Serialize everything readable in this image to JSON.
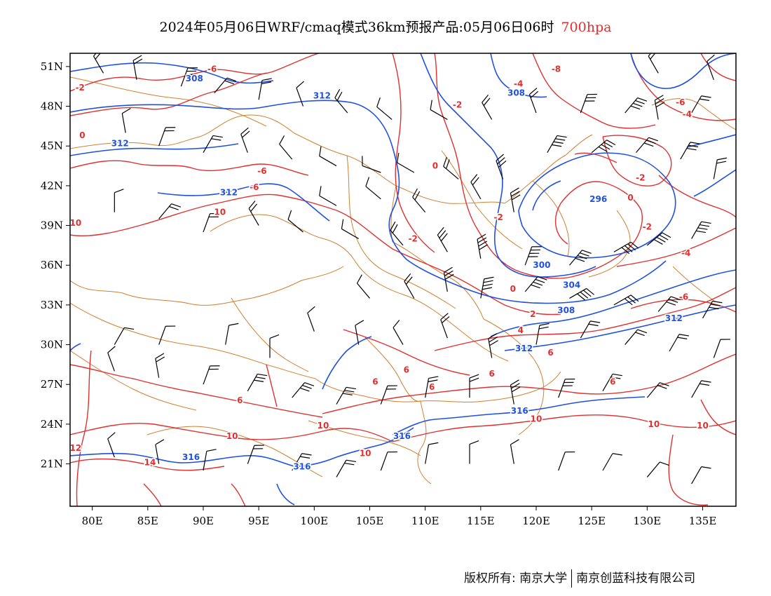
{
  "header": {
    "title": "2024年05月06日WRF/cmaq模式36km预报产品:05月06日06时",
    "level": "700hpa"
  },
  "map": {
    "lat_labels": [
      "51N",
      "48N",
      "45N",
      "42N",
      "39N",
      "36N",
      "33N",
      "30N",
      "27N",
      "24N",
      "21N"
    ],
    "lat_values": [
      51,
      48,
      45,
      42,
      39,
      36,
      33,
      30,
      27,
      24,
      21
    ],
    "lon_labels": [
      "80E",
      "85E",
      "90E",
      "95E",
      "100E",
      "105E",
      "110E",
      "115E",
      "120E",
      "125E",
      "130E",
      "135E"
    ],
    "lon_values": [
      80,
      85,
      90,
      95,
      100,
      105,
      110,
      115,
      120,
      125,
      130,
      135
    ],
    "lon_range": [
      78,
      138
    ],
    "lat_range": [
      17.8,
      52
    ],
    "height_contour_color": "#2050e0",
    "temp_contour_color": "#e03030",
    "border_color": "#d08030",
    "wind_barb_color": "#000000",
    "height_labels": [
      {
        "text": "308",
        "lon": 89.2,
        "lat": 50.1
      },
      {
        "text": "312",
        "lon": 100.7,
        "lat": 48.8
      },
      {
        "text": "308",
        "lon": 118.2,
        "lat": 49.0
      },
      {
        "text": "312",
        "lon": 82.5,
        "lat": 45.2
      },
      {
        "text": "312",
        "lon": 92.3,
        "lat": 41.5
      },
      {
        "text": "296",
        "lon": 125.6,
        "lat": 41.0
      },
      {
        "text": "300",
        "lon": 120.5,
        "lat": 36.0
      },
      {
        "text": "304",
        "lon": 123.2,
        "lat": 34.5
      },
      {
        "text": "308",
        "lon": 122.7,
        "lat": 32.6
      },
      {
        "text": "312",
        "lon": 132.4,
        "lat": 32.0
      },
      {
        "text": "312",
        "lon": 118.9,
        "lat": 29.7
      },
      {
        "text": "316",
        "lon": 118.5,
        "lat": 25.0
      },
      {
        "text": "316",
        "lon": 107.9,
        "lat": 23.1
      },
      {
        "text": "316",
        "lon": 88.9,
        "lat": 21.5
      },
      {
        "text": "316",
        "lon": 98.9,
        "lat": 20.8
      }
    ],
    "temp_labels": [
      {
        "text": "-6",
        "lon": 90.8,
        "lat": 50.8
      },
      {
        "text": "-2",
        "lon": 78.9,
        "lat": 49.4
      },
      {
        "text": "0",
        "lon": 79.1,
        "lat": 45.8
      },
      {
        "text": "-6",
        "lon": 95.3,
        "lat": 43.1
      },
      {
        "text": "-6",
        "lon": 94.6,
        "lat": 41.9
      },
      {
        "text": "10",
        "lon": 78.5,
        "lat": 39.2
      },
      {
        "text": "10",
        "lon": 91.5,
        "lat": 40.0
      },
      {
        "text": "-8",
        "lon": 121.8,
        "lat": 50.8
      },
      {
        "text": "-4",
        "lon": 118.4,
        "lat": 49.7
      },
      {
        "text": "-2",
        "lon": 112.9,
        "lat": 48.1
      },
      {
        "text": "-6",
        "lon": 133.0,
        "lat": 48.3
      },
      {
        "text": "-4",
        "lon": 133.6,
        "lat": 47.4
      },
      {
        "text": "0",
        "lon": 110.9,
        "lat": 43.5
      },
      {
        "text": "-2",
        "lon": 116.6,
        "lat": 39.6
      },
      {
        "text": "-2",
        "lon": 108.9,
        "lat": 38.0
      },
      {
        "text": "-2",
        "lon": 129.4,
        "lat": 42.6
      },
      {
        "text": "0",
        "lon": 128.5,
        "lat": 41.1
      },
      {
        "text": "-2",
        "lon": 130.0,
        "lat": 38.9
      },
      {
        "text": "-4",
        "lon": 133.5,
        "lat": 36.9
      },
      {
        "text": "0",
        "lon": 117.9,
        "lat": 34.2
      },
      {
        "text": "2",
        "lon": 119.7,
        "lat": 32.3
      },
      {
        "text": "4",
        "lon": 118.6,
        "lat": 31.1
      },
      {
        "text": "-6",
        "lon": 133.3,
        "lat": 33.6
      },
      {
        "text": "6",
        "lon": 121.3,
        "lat": 29.4
      },
      {
        "text": "6",
        "lon": 108.3,
        "lat": 28.1
      },
      {
        "text": "6",
        "lon": 105.5,
        "lat": 27.2
      },
      {
        "text": "6",
        "lon": 110.6,
        "lat": 26.8
      },
      {
        "text": "6",
        "lon": 116.0,
        "lat": 27.8
      },
      {
        "text": "6",
        "lon": 126.9,
        "lat": 27.2
      },
      {
        "text": "6",
        "lon": 93.3,
        "lat": 25.8
      },
      {
        "text": "10",
        "lon": 100.8,
        "lat": 23.9
      },
      {
        "text": "10",
        "lon": 92.6,
        "lat": 23.1
      },
      {
        "text": "10",
        "lon": 120.0,
        "lat": 24.4
      },
      {
        "text": "10",
        "lon": 130.6,
        "lat": 24.0
      },
      {
        "text": "10",
        "lon": 135.0,
        "lat": 23.9
      },
      {
        "text": "10",
        "lon": 104.6,
        "lat": 21.8
      },
      {
        "text": "12",
        "lon": 78.5,
        "lat": 22.2
      },
      {
        "text": "14",
        "lon": 85.2,
        "lat": 21.1
      }
    ]
  },
  "footer": {
    "copyright": "版权所有: 南京大学",
    "company": "南京创蓝科技有限公司"
  }
}
